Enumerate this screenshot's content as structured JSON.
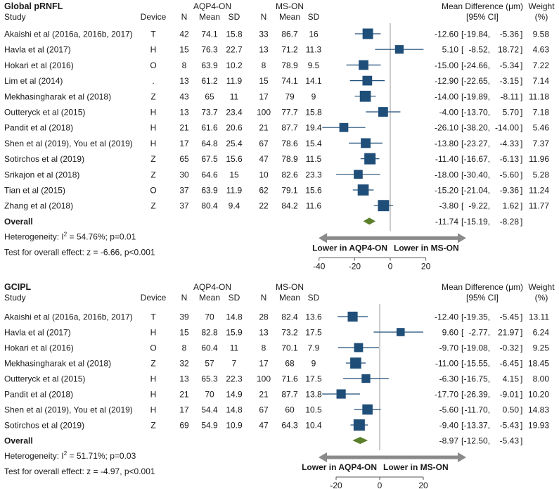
{
  "colors": {
    "marker": "#1f4e79",
    "diamond": "#5b7f2a",
    "zero_line": "#9a9a9a",
    "arrow": "#8a8a8a",
    "text": "#1a1a1a"
  },
  "chart_data": [
    {
      "type": "forest",
      "title": "Global pRNFL",
      "columns": {
        "study": "Study",
        "device": "Device",
        "n": "N",
        "mean": "Mean",
        "sd": "SD",
        "md": "Mean Difference (μm)",
        "ci": "[95% CI]",
        "weight": "Weight",
        "weight_unit": "(%)"
      },
      "group_a": "AQP4-ON",
      "group_b": "MS-ON",
      "xlim": [
        -40,
        20
      ],
      "ticks": [
        -40,
        -20,
        0,
        20
      ],
      "arrow_left_label": "Lower in AQP4-ON",
      "arrow_right_label": "Lower in MS-ON",
      "studies": [
        {
          "study": "Akaishi et al (2016a, 2016b, 2017)",
          "device": "T",
          "n1": "42",
          "mean1": "74.1",
          "sd1": "15.8",
          "n2": "33",
          "mean2": "86.7",
          "sd2": "16",
          "md": -12.6,
          "lo": -19.84,
          "hi": -5.36,
          "weight": 9.58,
          "md_s": "-12.60",
          "lo_s": "-19.84",
          "hi_s": "-5.36",
          "weight_s": "9.58"
        },
        {
          "study": "Havla et al (2017)",
          "device": "H",
          "n1": "15",
          "mean1": "76.3",
          "sd1": "22.7",
          "n2": "13",
          "mean2": "71.2",
          "sd2": "11.3",
          "md": 5.1,
          "lo": -8.52,
          "hi": 18.72,
          "weight": 4.63,
          "md_s": "5.10",
          "lo_s": "-8.52",
          "hi_s": "18.72",
          "weight_s": "4.63"
        },
        {
          "study": "Hokari et al (2016)",
          "device": "O",
          "n1": "8",
          "mean1": "63.9",
          "sd1": "10.2",
          "n2": "8",
          "mean2": "78.9",
          "sd2": "9.5",
          "md": -15.0,
          "lo": -24.66,
          "hi": -5.34,
          "weight": 7.22,
          "md_s": "-15.00",
          "lo_s": "-24.66",
          "hi_s": "-5.34",
          "weight_s": "7.22"
        },
        {
          "study": "Lim et al (2014)",
          "device": ".",
          "n1": "13",
          "mean1": "61.2",
          "sd1": "11.9",
          "n2": "15",
          "mean2": "74.1",
          "sd2": "14.1",
          "md": -12.9,
          "lo": -22.65,
          "hi": -3.15,
          "weight": 7.14,
          "md_s": "-12.90",
          "lo_s": "-22.65",
          "hi_s": "-3.15",
          "weight_s": "7.14"
        },
        {
          "study": "Mekhasingharak et al (2018)",
          "device": "Z",
          "n1": "43",
          "mean1": "65",
          "sd1": "11",
          "n2": "17",
          "mean2": "79",
          "sd2": "9",
          "md": -14.0,
          "lo": -19.89,
          "hi": -8.11,
          "weight": 11.18,
          "md_s": "-14.00",
          "lo_s": "-19.89",
          "hi_s": "-8.11",
          "weight_s": "11.18"
        },
        {
          "study": "Outteryck et al (2015)",
          "device": "H",
          "n1": "13",
          "mean1": "73.7",
          "sd1": "23.4",
          "n2": "100",
          "mean2": "77.7",
          "sd2": "15.8",
          "md": -4.0,
          "lo": -13.7,
          "hi": 5.7,
          "weight": 7.18,
          "md_s": "-4.00",
          "lo_s": "-13.70",
          "hi_s": "5.70",
          "weight_s": "7.18"
        },
        {
          "study": "Pandit et al (2018)",
          "device": "H",
          "n1": "21",
          "mean1": "61.6",
          "sd1": "20.6",
          "n2": "21",
          "mean2": "87.7",
          "sd2": "19.4",
          "md": -26.1,
          "lo": -38.2,
          "hi": -14.0,
          "weight": 5.46,
          "md_s": "-26.10",
          "lo_s": "-38.20",
          "hi_s": "-14.00",
          "weight_s": "5.46"
        },
        {
          "study": "Shen et al (2019), You et al (2019)",
          "device": "H",
          "n1": "17",
          "mean1": "64.8",
          "sd1": "25.4",
          "n2": "67",
          "mean2": "78.6",
          "sd2": "15.4",
          "md": -13.8,
          "lo": -23.27,
          "hi": -4.33,
          "weight": 7.37,
          "md_s": "-13.80",
          "lo_s": "-23.27",
          "hi_s": "-4.33",
          "weight_s": "7.37"
        },
        {
          "study": "Sotirchos et al (2019)",
          "device": "Z",
          "n1": "65",
          "mean1": "67.5",
          "sd1": "15.6",
          "n2": "47",
          "mean2": "78.9",
          "sd2": "11.5",
          "md": -11.4,
          "lo": -16.67,
          "hi": -6.13,
          "weight": 11.96,
          "md_s": "-11.40",
          "lo_s": "-16.67",
          "hi_s": "-6.13",
          "weight_s": "11.96"
        },
        {
          "study": "Srikajon et al (2018)",
          "device": "Z",
          "n1": "30",
          "mean1": "64.6",
          "sd1": "15",
          "n2": "10",
          "mean2": "82.6",
          "sd2": "23.3",
          "md": -18.0,
          "lo": -30.4,
          "hi": -5.6,
          "weight": 5.28,
          "md_s": "-18.00",
          "lo_s": "-30.40",
          "hi_s": "-5.60",
          "weight_s": "5.28"
        },
        {
          "study": "Tian et al (2015)",
          "device": "O",
          "n1": "37",
          "mean1": "63.9",
          "sd1": "11.9",
          "n2": "62",
          "mean2": "79.1",
          "sd2": "15.6",
          "md": -15.2,
          "lo": -21.04,
          "hi": -9.36,
          "weight": 11.24,
          "md_s": "-15.20",
          "lo_s": "-21.04",
          "hi_s": "-9.36",
          "weight_s": "11.24"
        },
        {
          "study": "Zhang et al (2018)",
          "device": "Z",
          "n1": "37",
          "mean1": "80.4",
          "sd1": "9.4",
          "n2": "22",
          "mean2": "84.2",
          "sd2": "11.6",
          "md": -3.8,
          "lo": -9.22,
          "hi": 1.62,
          "weight": 11.77,
          "md_s": "-3.80",
          "lo_s": "-9.22",
          "hi_s": "1.62",
          "weight_s": "11.77"
        }
      ],
      "overall": {
        "label": "Overall",
        "md": -11.74,
        "lo": -15.19,
        "hi": -8.28,
        "md_s": "-11.74",
        "lo_s": "-15.19",
        "hi_s": "-8.28"
      },
      "heterogeneity_prefix": "Heterogeneity: I",
      "heterogeneity_sup": "2",
      "heterogeneity_rest": " = 54.76%; p=0.01",
      "overall_effect": "Test for overall effect: z = -6.66, p<0.001"
    },
    {
      "type": "forest",
      "title": "GCIPL",
      "columns": {
        "study": "Study",
        "device": "Device",
        "n": "N",
        "mean": "Mean",
        "sd": "SD",
        "md": "Mean Difference (μm)",
        "ci": "[95% CI]",
        "weight": "Weight",
        "weight_unit": "(%)"
      },
      "group_a": "AQP4-ON",
      "group_b": "MS-ON",
      "xlim": [
        -30,
        20
      ],
      "ticks": [
        -20,
        0,
        20
      ],
      "arrow_left_label": "Lower in AQP4-ON",
      "arrow_right_label": "Lower in MS-ON",
      "studies": [
        {
          "study": "Akaishi et al (2016a, 2016b, 2017)",
          "device": "T",
          "n1": "39",
          "mean1": "70",
          "sd1": "14.8",
          "n2": "28",
          "mean2": "82.4",
          "sd2": "13.6",
          "md": -12.4,
          "lo": -19.35,
          "hi": -5.45,
          "weight": 13.11,
          "md_s": "-12.40",
          "lo_s": "-19.35",
          "hi_s": "-5.45",
          "weight_s": "13.11"
        },
        {
          "study": "Havla et al (2017)",
          "device": "H",
          "n1": "15",
          "mean1": "82.8",
          "sd1": "15.9",
          "n2": "13",
          "mean2": "73.2",
          "sd2": "17.5",
          "md": 9.6,
          "lo": -2.77,
          "hi": 21.97,
          "weight": 6.24,
          "md_s": "9.60",
          "lo_s": "-2.77",
          "hi_s": "21.97",
          "weight_s": "6.24"
        },
        {
          "study": "Hokari et al (2016)",
          "device": "O",
          "n1": "8",
          "mean1": "60.4",
          "sd1": "11",
          "n2": "8",
          "mean2": "70.1",
          "sd2": "7.9",
          "md": -9.7,
          "lo": -19.08,
          "hi": -0.32,
          "weight": 9.25,
          "md_s": "-9.70",
          "lo_s": "-19.08",
          "hi_s": "-0.32",
          "weight_s": "9.25"
        },
        {
          "study": "Mekhasingharak et al (2018)",
          "device": "Z",
          "n1": "32",
          "mean1": "57",
          "sd1": "7",
          "n2": "17",
          "mean2": "68",
          "sd2": "9",
          "md": -11.0,
          "lo": -15.55,
          "hi": -6.45,
          "weight": 18.45,
          "md_s": "-11.00",
          "lo_s": "-15.55",
          "hi_s": "-6.45",
          "weight_s": "18.45"
        },
        {
          "study": "Outteryck et al (2015)",
          "device": "H",
          "n1": "13",
          "mean1": "65.3",
          "sd1": "22.3",
          "n2": "100",
          "mean2": "71.6",
          "sd2": "17.5",
          "md": -6.3,
          "lo": -16.75,
          "hi": 4.15,
          "weight": 8.0,
          "md_s": "-6.30",
          "lo_s": "-16.75",
          "hi_s": "4.15",
          "weight_s": "8.00"
        },
        {
          "study": "Pandit et al (2018)",
          "device": "H",
          "n1": "21",
          "mean1": "70",
          "sd1": "14.9",
          "n2": "21",
          "mean2": "87.7",
          "sd2": "13.8",
          "md": -17.7,
          "lo": -26.39,
          "hi": -9.01,
          "weight": 10.2,
          "md_s": "-17.70",
          "lo_s": "-26.39",
          "hi_s": "-9.01",
          "weight_s": "10.20"
        },
        {
          "study": "Shen et al (2019), You et al (2019)",
          "device": "H",
          "n1": "17",
          "mean1": "54.4",
          "sd1": "14.8",
          "n2": "67",
          "mean2": "60",
          "sd2": "10.5",
          "md": -5.6,
          "lo": -11.7,
          "hi": 0.5,
          "weight": 14.83,
          "md_s": "-5.60",
          "lo_s": "-11.70",
          "hi_s": "0.50",
          "weight_s": "14.83"
        },
        {
          "study": "Sotirchos et al (2019)",
          "device": "Z",
          "n1": "69",
          "mean1": "54.9",
          "sd1": "10.9",
          "n2": "47",
          "mean2": "64.3",
          "sd2": "10.4",
          "md": -9.4,
          "lo": -13.37,
          "hi": -5.43,
          "weight": 19.93,
          "md_s": "-9.40",
          "lo_s": "-13.37",
          "hi_s": "-5.43",
          "weight_s": "19.93"
        }
      ],
      "overall": {
        "label": "Overall",
        "md": -8.97,
        "lo": -12.5,
        "hi": -5.43,
        "md_s": "-8.97",
        "lo_s": "-12.50",
        "hi_s": "-5.43"
      },
      "heterogeneity_prefix": "Heterogeneity: I",
      "heterogeneity_sup": "2",
      "heterogeneity_rest": " = 51.71%; p=0.03",
      "overall_effect": "Test for overall effect: z = -4.97, p<0.001"
    }
  ]
}
